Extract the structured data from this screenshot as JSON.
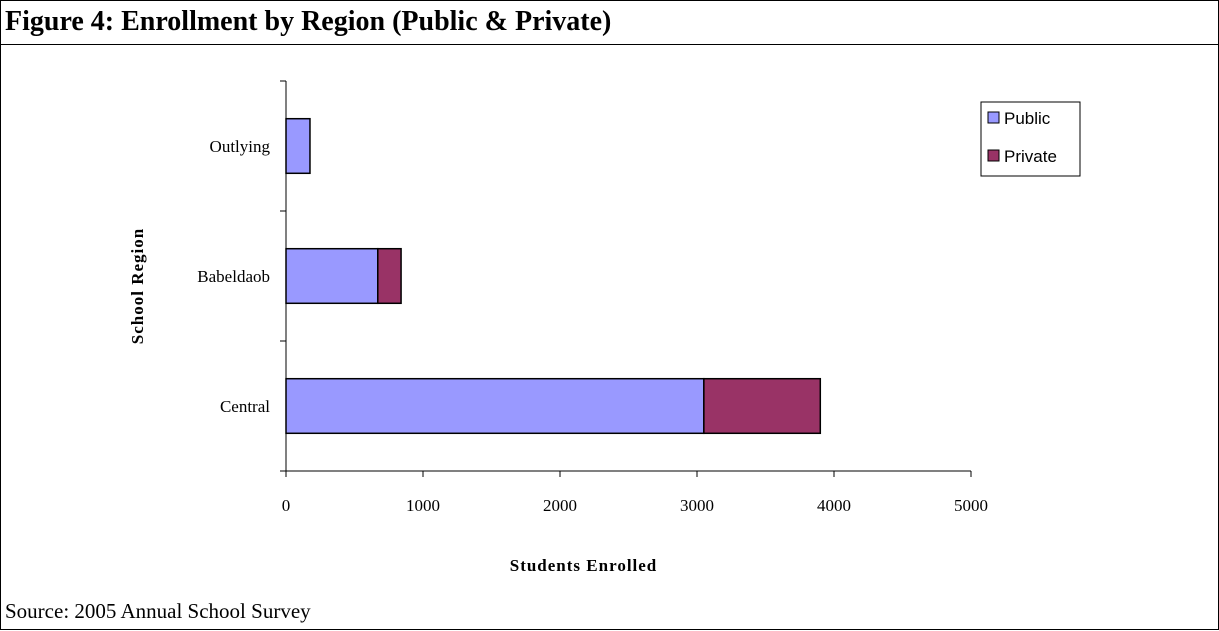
{
  "figure": {
    "title": "Figure 4: Enrollment by Region (Public & Private)",
    "source": "Source: 2005 Annual School Survey"
  },
  "chart_data": {
    "type": "bar",
    "orientation": "horizontal",
    "stacked": true,
    "categories": [
      "Central",
      "Babeldaob",
      "Outlying"
    ],
    "series": [
      {
        "name": "Public",
        "values": [
          3050,
          670,
          175
        ],
        "color": "#9999ff"
      },
      {
        "name": "Private",
        "values": [
          850,
          170,
          0
        ],
        "color": "#993366"
      }
    ],
    "xlabel": "Students Enrolled",
    "ylabel": "School Region",
    "xlim": [
      0,
      5000
    ],
    "xticks": [
      0,
      1000,
      2000,
      3000,
      4000,
      5000
    ],
    "grid": false,
    "legend_position": "top-right"
  }
}
